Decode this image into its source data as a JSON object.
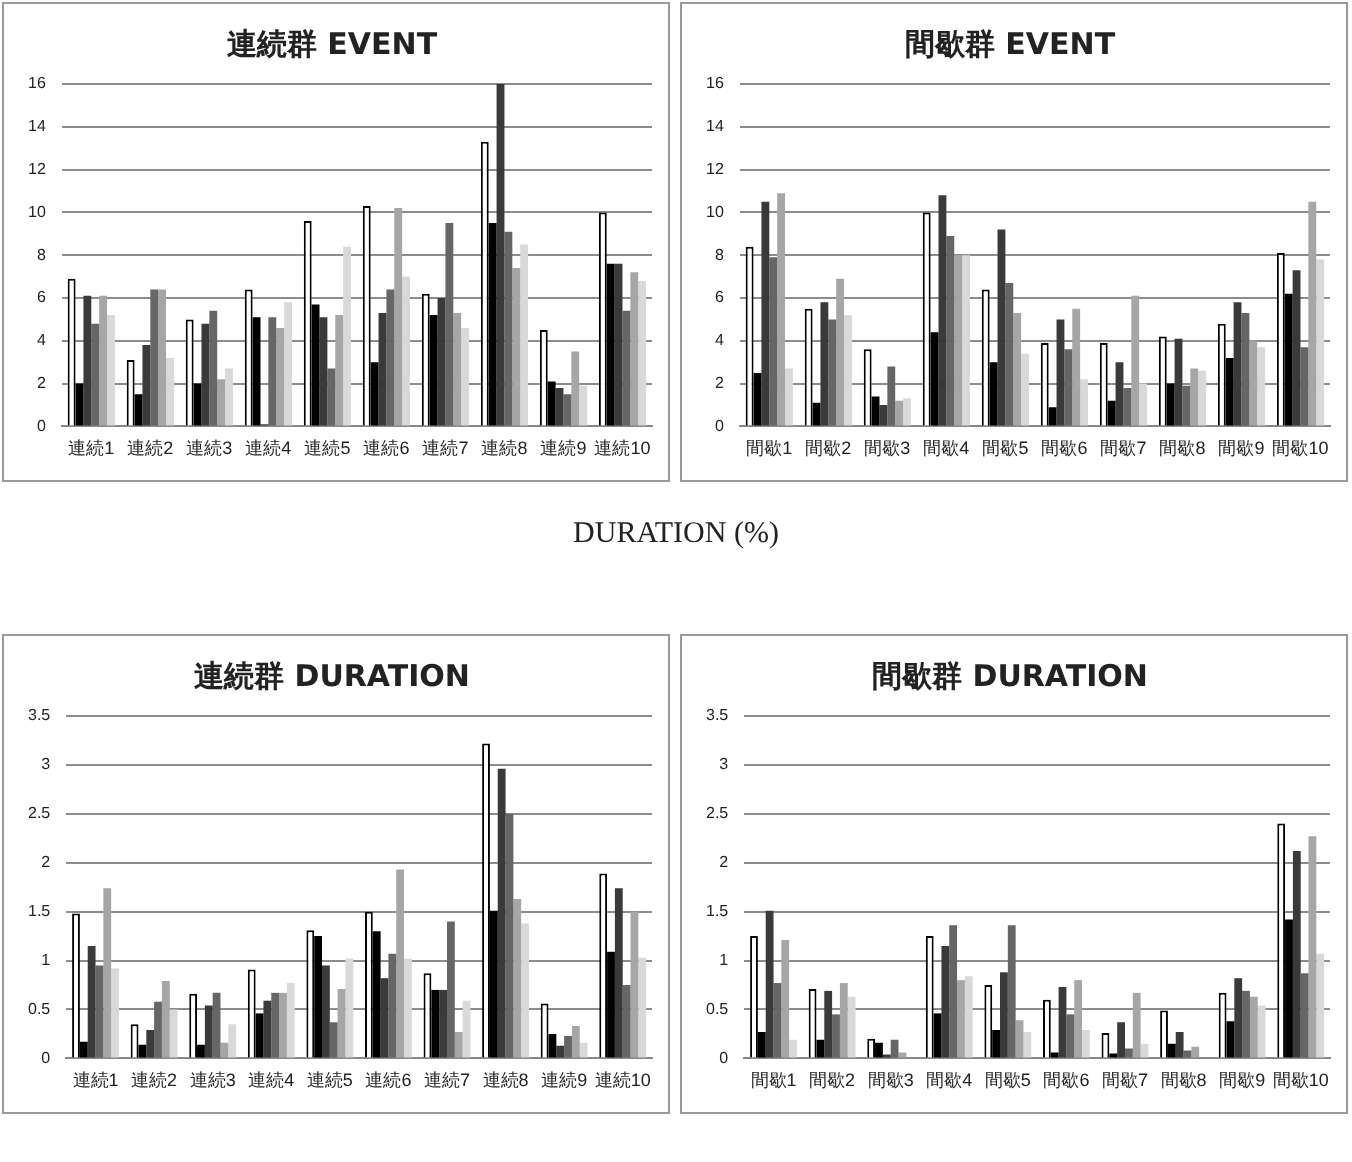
{
  "chart_data": [
    {
      "type": "bar",
      "title": "連続群 EVENT",
      "categories": [
        "連続1",
        "連続2",
        "連続3",
        "連続4",
        "連続5",
        "連続6",
        "連続7",
        "連続8",
        "連続9",
        "連続10"
      ],
      "ylim": [
        0,
        16
      ],
      "yticks": [
        0,
        2,
        4,
        6,
        8,
        10,
        12,
        14,
        16
      ],
      "grid": "y",
      "legend": false,
      "annotations": [
        "DURATION (%)"
      ],
      "series": [
        {
          "color": "#ffffff",
          "values": [
            6.9,
            3.1,
            5.0,
            6.4,
            9.6,
            10.3,
            6.2,
            13.3,
            4.5,
            10.0
          ]
        },
        {
          "color": "#000000",
          "values": [
            2.0,
            1.5,
            2.0,
            5.1,
            5.7,
            3.0,
            5.2,
            9.5,
            2.1,
            7.6
          ]
        },
        {
          "color": "#3a3a3a",
          "values": [
            6.1,
            3.8,
            4.8,
            0.1,
            5.1,
            5.3,
            6.0,
            16.0,
            1.8,
            7.6
          ]
        },
        {
          "color": "#666666",
          "values": [
            4.8,
            6.4,
            5.4,
            5.1,
            2.7,
            6.4,
            9.5,
            9.1,
            1.5,
            5.4
          ]
        },
        {
          "color": "#a6a6a6",
          "values": [
            6.1,
            6.4,
            2.2,
            4.6,
            5.2,
            10.2,
            5.3,
            7.4,
            3.5,
            7.2
          ]
        },
        {
          "color": "#d9d9d9",
          "values": [
            5.2,
            3.2,
            2.7,
            5.8,
            8.4,
            7.0,
            4.6,
            8.5,
            1.9,
            6.8
          ]
        }
      ]
    },
    {
      "type": "bar",
      "title": "間歇群 EVENT",
      "categories": [
        "間歇1",
        "間歇2",
        "間歇3",
        "間歇4",
        "間歇5",
        "間歇6",
        "間歇7",
        "間歇8",
        "間歇9",
        "間歇10"
      ],
      "ylim": [
        0,
        16
      ],
      "yticks": [
        0,
        2,
        4,
        6,
        8,
        10,
        12,
        14,
        16
      ],
      "grid": "y",
      "legend": false,
      "series": [
        {
          "color": "#ffffff",
          "values": [
            8.4,
            5.5,
            3.6,
            10.0,
            6.4,
            3.9,
            3.9,
            4.2,
            4.8,
            8.1
          ]
        },
        {
          "color": "#000000",
          "values": [
            2.5,
            1.1,
            1.4,
            4.4,
            3.0,
            0.9,
            1.2,
            2.0,
            3.2,
            6.2
          ]
        },
        {
          "color": "#3a3a3a",
          "values": [
            10.5,
            5.8,
            1.0,
            10.8,
            9.2,
            5.0,
            3.0,
            4.1,
            5.8,
            7.3
          ]
        },
        {
          "color": "#666666",
          "values": [
            7.9,
            5.0,
            2.8,
            8.9,
            6.7,
            3.6,
            1.8,
            1.9,
            5.3,
            3.7
          ]
        },
        {
          "color": "#a6a6a6",
          "values": [
            10.9,
            6.9,
            1.2,
            8.0,
            5.3,
            5.5,
            6.1,
            2.7,
            4.0,
            10.5
          ]
        },
        {
          "color": "#d9d9d9",
          "values": [
            2.7,
            5.2,
            1.3,
            8.0,
            3.4,
            2.2,
            2.0,
            2.6,
            3.7,
            7.8
          ]
        }
      ]
    },
    {
      "type": "bar",
      "title": "連続群 DURATION",
      "categories": [
        "連続1",
        "連続2",
        "連続3",
        "連続4",
        "連続5",
        "連続6",
        "連続7",
        "連続8",
        "連続9",
        "連続10"
      ],
      "ylim": [
        0,
        3.5
      ],
      "yticks": [
        0,
        0.5,
        1,
        1.5,
        2,
        2.5,
        3,
        3.5
      ],
      "grid": "y",
      "legend": false,
      "series": [
        {
          "color": "#ffffff",
          "values": [
            1.48,
            0.35,
            0.66,
            0.91,
            1.31,
            1.5,
            0.87,
            3.22,
            0.56,
            1.89
          ]
        },
        {
          "color": "#000000",
          "values": [
            0.17,
            0.14,
            0.14,
            0.46,
            1.25,
            1.3,
            0.7,
            1.51,
            0.25,
            1.09
          ]
        },
        {
          "color": "#3a3a3a",
          "values": [
            1.15,
            0.29,
            0.54,
            0.59,
            0.95,
            0.82,
            0.7,
            2.96,
            0.13,
            1.74
          ]
        },
        {
          "color": "#666666",
          "values": [
            0.95,
            0.58,
            0.67,
            0.67,
            0.37,
            1.07,
            1.4,
            2.5,
            0.23,
            0.75
          ]
        },
        {
          "color": "#a6a6a6",
          "values": [
            1.74,
            0.79,
            0.16,
            0.67,
            0.71,
            1.93,
            0.27,
            1.63,
            0.33,
            1.5
          ]
        },
        {
          "color": "#d9d9d9",
          "values": [
            0.92,
            0.5,
            0.35,
            0.77,
            1.02,
            1.02,
            0.59,
            1.38,
            0.16,
            1.03
          ]
        }
      ]
    },
    {
      "type": "bar",
      "title": "間歇群 DURATION",
      "categories": [
        "間歇1",
        "間歇2",
        "間歇3",
        "間歇4",
        "間歇5",
        "間歇6",
        "間歇7",
        "間歇8",
        "間歇9",
        "間歇10"
      ],
      "ylim": [
        0,
        3.5
      ],
      "yticks": [
        0,
        0.5,
        1,
        1.5,
        2,
        2.5,
        3,
        3.5
      ],
      "grid": "y",
      "legend": false,
      "series": [
        {
          "color": "#ffffff",
          "values": [
            1.25,
            0.71,
            0.2,
            1.25,
            0.75,
            0.6,
            0.26,
            0.49,
            0.67,
            2.4
          ]
        },
        {
          "color": "#000000",
          "values": [
            0.27,
            0.19,
            0.16,
            0.46,
            0.29,
            0.06,
            0.05,
            0.15,
            0.38,
            1.42
          ]
        },
        {
          "color": "#3a3a3a",
          "values": [
            1.51,
            0.69,
            0.04,
            1.15,
            0.88,
            0.73,
            0.37,
            0.27,
            0.82,
            2.12
          ]
        },
        {
          "color": "#666666",
          "values": [
            0.77,
            0.45,
            0.19,
            1.36,
            1.36,
            0.45,
            0.1,
            0.08,
            0.69,
            0.87
          ]
        },
        {
          "color": "#a6a6a6",
          "values": [
            1.21,
            0.77,
            0.06,
            0.8,
            0.39,
            0.8,
            0.67,
            0.12,
            0.63,
            2.27
          ]
        },
        {
          "color": "#d9d9d9",
          "values": [
            0.19,
            0.63,
            null,
            0.84,
            0.27,
            0.29,
            0.15,
            null,
            0.54,
            1.07
          ]
        }
      ]
    }
  ]
}
